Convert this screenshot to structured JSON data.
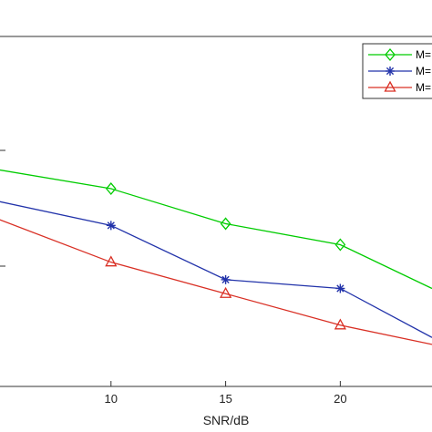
{
  "chart_data": {
    "type": "line",
    "xlabel": "SNR/dB",
    "ylabel": "",
    "title": "",
    "x_ticks": [
      "10",
      "15",
      "20"
    ],
    "xlim": [
      5,
      24
    ],
    "ylim": [
      0,
      1
    ],
    "grid": false,
    "legend_position": "top-right",
    "series": [
      {
        "name": "M=",
        "color": "#00cc00",
        "marker": "diamond",
        "x": [
          5,
          10,
          15,
          20,
          24
        ],
        "y": [
          0.62,
          0.565,
          0.465,
          0.405,
          0.28
        ]
      },
      {
        "name": "M=",
        "color": "#2233aa",
        "marker": "asterisk",
        "x": [
          5,
          10,
          15,
          20,
          24
        ],
        "y": [
          0.53,
          0.46,
          0.305,
          0.28,
          0.14
        ]
      },
      {
        "name": "M=",
        "color": "#d93025",
        "marker": "triangle",
        "x": [
          5,
          10,
          15,
          20,
          24
        ],
        "y": [
          0.48,
          0.355,
          0.265,
          0.175,
          0.12
        ]
      }
    ]
  }
}
